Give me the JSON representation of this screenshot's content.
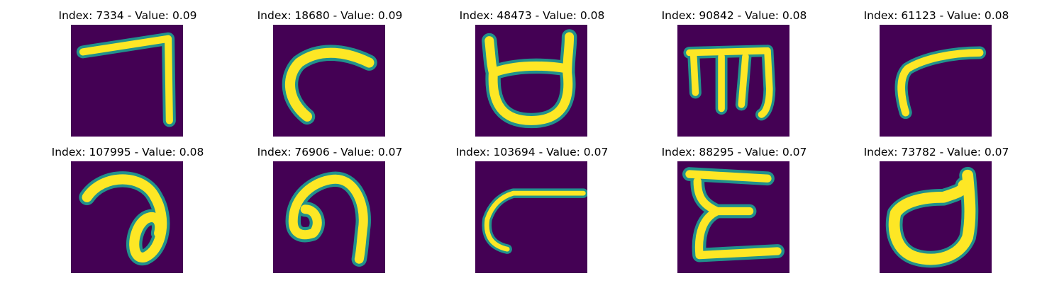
{
  "figure": {
    "colors": {
      "background": "#440154",
      "stroke_edge": "#21918c",
      "stroke_core": "#fde725"
    },
    "panels": [
      {
        "title": "Index: 7334 - Value: 0.09",
        "glyph": "corner-stroke-glyph"
      },
      {
        "title": "Index: 18680 - Value: 0.09",
        "glyph": "hook-stroke-glyph"
      },
      {
        "title": "Index: 48473 - Value: 0.08",
        "glyph": "cup-glyph"
      },
      {
        "title": "Index: 90842 - Value: 0.08",
        "glyph": "trident-glyph"
      },
      {
        "title": "Index: 61123 - Value: 0.08",
        "glyph": "small-hook-glyph"
      },
      {
        "title": "Index: 107995 - Value: 0.08",
        "glyph": "loop-glyph"
      },
      {
        "title": "Index: 76906 - Value: 0.07",
        "glyph": "curl-glyph"
      },
      {
        "title": "Index: 103694 - Value: 0.07",
        "glyph": "open-curve-glyph"
      },
      {
        "title": "Index: 88295 - Value: 0.07",
        "glyph": "epsilon-glyph"
      },
      {
        "title": "Index: 73782 - Value: 0.07",
        "glyph": "round-d-glyph"
      }
    ]
  }
}
